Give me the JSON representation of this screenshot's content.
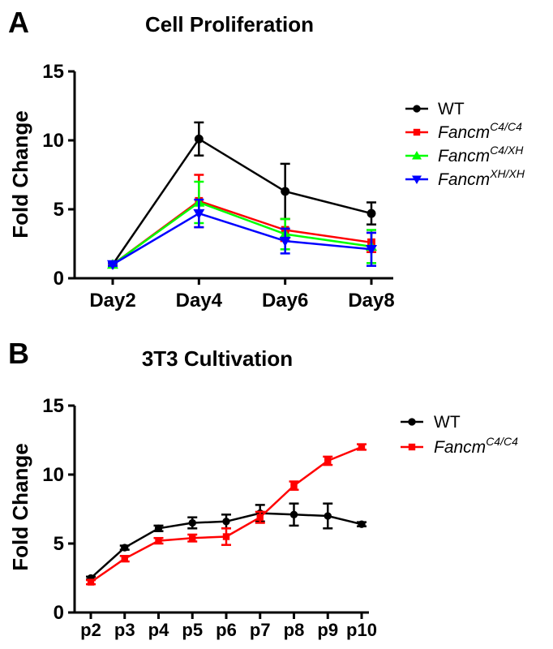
{
  "chart_data": [
    {
      "panel": "A",
      "type": "line",
      "title": "Cell Proliferation",
      "xlabel": "",
      "ylabel": "Fold Change",
      "categories": [
        "Day2",
        "Day4",
        "Day6",
        "Day8"
      ],
      "ylim": [
        0,
        15
      ],
      "yticks": [
        "0",
        "5",
        "10",
        "15"
      ],
      "grid": false,
      "legend_position": "right",
      "series": [
        {
          "name": "WT",
          "name_sup": "",
          "italic": false,
          "color": "#000000",
          "marker": "circle",
          "values": [
            1.0,
            10.1,
            6.3,
            4.7
          ],
          "errors": [
            0.1,
            1.2,
            2.0,
            0.8
          ]
        },
        {
          "name": "Fancm",
          "name_sup": "C4/C4",
          "italic": true,
          "color": "#ff0000",
          "marker": "square",
          "values": [
            1.0,
            5.6,
            3.5,
            2.6
          ],
          "errors": [
            0.1,
            1.9,
            0.8,
            0.7
          ]
        },
        {
          "name": "Fancm",
          "name_sup": "C4/XH",
          "italic": true,
          "color": "#00ff00",
          "marker": "triangle-up",
          "values": [
            1.0,
            5.5,
            3.2,
            2.3
          ],
          "errors": [
            0.1,
            1.5,
            1.1,
            1.2
          ]
        },
        {
          "name": "Fancm",
          "name_sup": "XH/XH",
          "italic": true,
          "color": "#0000ff",
          "marker": "triangle-down",
          "values": [
            1.0,
            4.7,
            2.7,
            2.1
          ],
          "errors": [
            0.1,
            1.0,
            0.9,
            1.2
          ]
        }
      ]
    },
    {
      "panel": "B",
      "type": "line",
      "title": "3T3 Cultivation",
      "xlabel": "",
      "ylabel": "Fold Change",
      "categories": [
        "p2",
        "p3",
        "p4",
        "p5",
        "p6",
        "p7",
        "p8",
        "p9",
        "p10"
      ],
      "ylim": [
        0,
        15
      ],
      "yticks": [
        "0",
        "5",
        "10",
        "15"
      ],
      "grid": false,
      "legend_position": "right",
      "series": [
        {
          "name": "WT",
          "name_sup": "",
          "italic": false,
          "color": "#000000",
          "marker": "circle",
          "values": [
            2.5,
            4.7,
            6.1,
            6.5,
            6.6,
            7.2,
            7.1,
            7.0,
            6.4
          ],
          "errors": [
            0.1,
            0.15,
            0.2,
            0.4,
            0.5,
            0.6,
            0.8,
            0.9,
            0.15
          ]
        },
        {
          "name": "Fancm",
          "name_sup": "C4/C4",
          "italic": true,
          "color": "#ff0000",
          "marker": "square",
          "values": [
            2.2,
            3.9,
            5.2,
            5.4,
            5.5,
            6.9,
            9.2,
            11.0,
            12.0
          ],
          "errors": [
            0.15,
            0.2,
            0.2,
            0.25,
            0.6,
            0.4,
            0.3,
            0.3,
            0.2
          ]
        }
      ]
    }
  ]
}
